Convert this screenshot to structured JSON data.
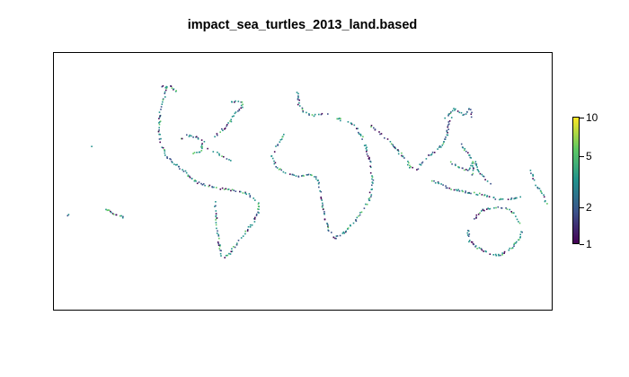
{
  "title": "impact_sea_turtles_2013_land.based",
  "legend": {
    "scale": "log",
    "colors": [
      "#440154",
      "#3b528b",
      "#21918c",
      "#5ec962",
      "#fde725"
    ],
    "ticks": [
      {
        "value": 10,
        "label": "10"
      },
      {
        "value": 5,
        "label": "5"
      },
      {
        "value": 2,
        "label": "2"
      },
      {
        "value": 1,
        "label": "1"
      }
    ]
  }
}
